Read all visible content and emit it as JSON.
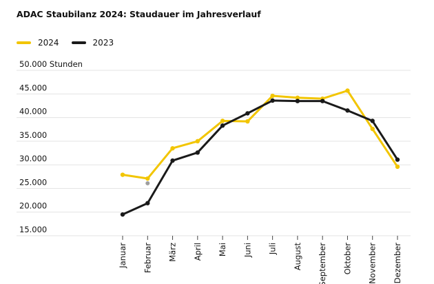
{
  "chart_data": {
    "type": "line",
    "title": "ADAC Staubilanz 2024: Staudauer im Jahresverlauf",
    "ylabel": "Stunden",
    "ylim": [
      15000,
      50000
    ],
    "yticks": [
      {
        "value": 50000,
        "label": "50.000 Stunden"
      },
      {
        "value": 45000,
        "label": "45.000"
      },
      {
        "value": 40000,
        "label": "40.000"
      },
      {
        "value": 35000,
        "label": "35.000"
      },
      {
        "value": 30000,
        "label": "30.000"
      },
      {
        "value": 25000,
        "label": "25.000"
      },
      {
        "value": 20000,
        "label": "20.000"
      },
      {
        "value": 15000,
        "label": "15.000"
      }
    ],
    "categories": [
      "Januar",
      "Februar",
      "März",
      "April",
      "Mai",
      "Juni",
      "Juli",
      "August",
      "September",
      "Oktober",
      "November",
      "Dezember"
    ],
    "grid": true,
    "legend_position": "top-left",
    "series": [
      {
        "name": "2024",
        "color": "#F2C500",
        "values": [
          27900,
          27100,
          33500,
          35000,
          39300,
          39200,
          44600,
          44200,
          44000,
          45700,
          37600,
          29600
        ]
      },
      {
        "name": "2023",
        "color": "#1A1A1A",
        "values": [
          19500,
          21900,
          30900,
          32600,
          38300,
          40900,
          43600,
          43500,
          43500,
          41500,
          39300,
          31100
        ]
      }
    ],
    "annotations": [
      {
        "category": "Februar",
        "value": 26100,
        "color": "#9E9E9E"
      }
    ]
  }
}
